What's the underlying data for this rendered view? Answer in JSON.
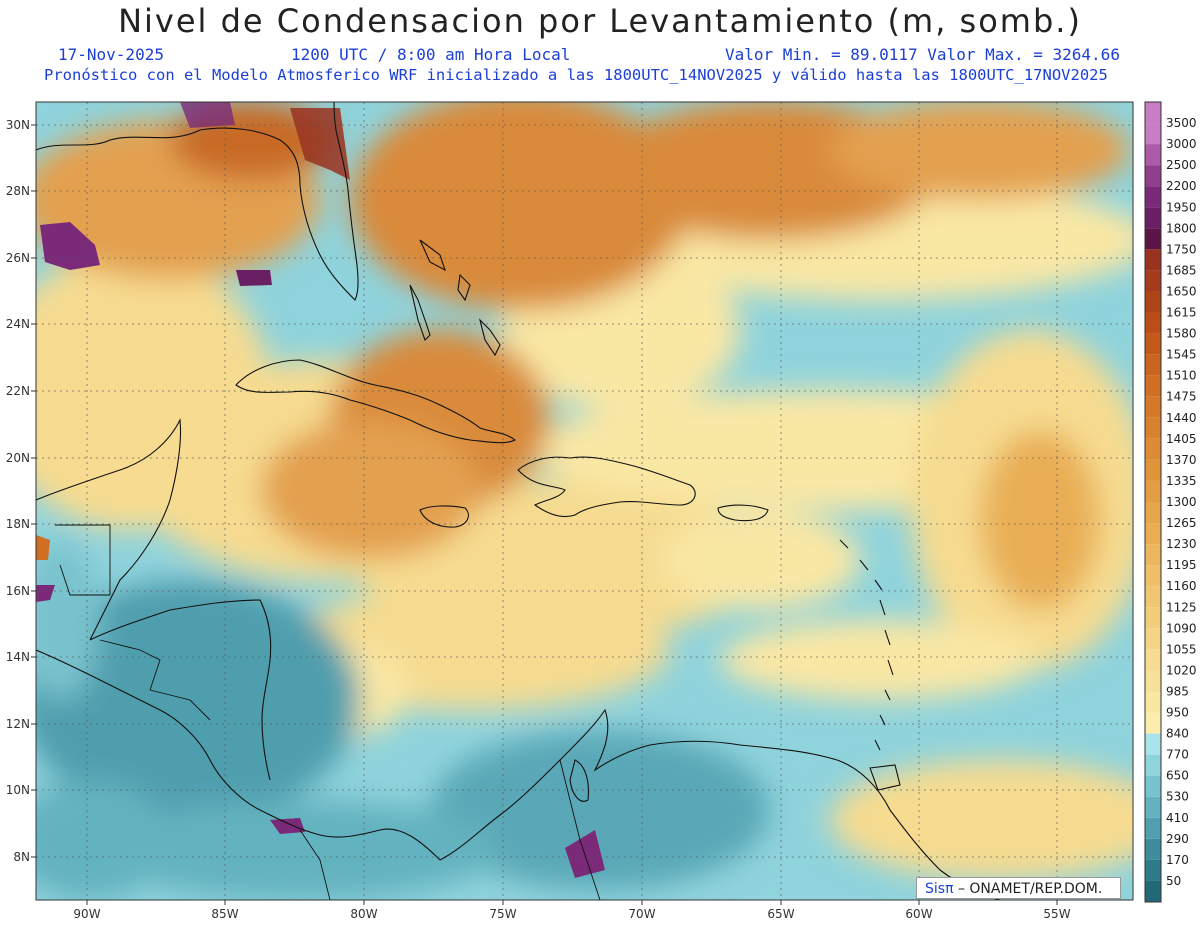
{
  "header": {
    "title": "Nivel de Condensacion por Levantamiento (m, somb.)",
    "date": "17-Nov-2025",
    "time": "1200 UTC / 8:00 am Hora Local",
    "minmax": "Valor Min. = 89.0117  Valor Max. = 3264.66",
    "forecast": "Pronóstico con el Modelo Atmosferico WRF inicializado a las 1800UTC_14NOV2025 y válido hasta las  1800UTC_17NOV2025"
  },
  "axes": {
    "lon_labels": [
      "90W",
      "85W",
      "80W",
      "75W",
      "70W",
      "65W",
      "60W",
      "55W"
    ],
    "lat_labels": [
      "30N",
      "28N",
      "26N",
      "24N",
      "22N",
      "20N",
      "18N",
      "16N",
      "14N",
      "12N",
      "10N",
      "8N"
    ]
  },
  "colorbar": {
    "levels": [
      "3500",
      "3000",
      "2500",
      "2200",
      "1950",
      "1800",
      "1750",
      "1685",
      "1650",
      "1615",
      "1580",
      "1545",
      "1510",
      "1475",
      "1440",
      "1405",
      "1370",
      "1335",
      "1300",
      "1265",
      "1230",
      "1195",
      "1160",
      "1125",
      "1090",
      "1055",
      "1020",
      "985",
      "950",
      "840",
      "770",
      "650",
      "530",
      "410",
      "290",
      "170",
      "50"
    ],
    "colors": [
      "#c77dc3",
      "#ad5aa8",
      "#8f3f8c",
      "#7a2a78",
      "#6a1e63",
      "#5a1445",
      "#993320",
      "#a53a1c",
      "#b04419",
      "#bb4e18",
      "#c45a1a",
      "#cb6420",
      "#d06e24",
      "#d57828",
      "#d9822e",
      "#dc8b34",
      "#e0943a",
      "#e39d42",
      "#e6a64a",
      "#e9ae54",
      "#ecb65e",
      "#eebe68",
      "#f0c672",
      "#f2cd7c",
      "#f4d486",
      "#f6db90",
      "#f7e19a",
      "#f9e7a4",
      "#fbedae",
      "#a9e4ea",
      "#8fd3dc",
      "#79c3ce",
      "#64b2bf",
      "#509fae",
      "#3f8d9c",
      "#2f7a89",
      "#226877"
    ],
    "top_color": "#c77dc3"
  },
  "watermark": {
    "brand": "Sisπ",
    "org": "– ONAMET/REP.DOM."
  }
}
